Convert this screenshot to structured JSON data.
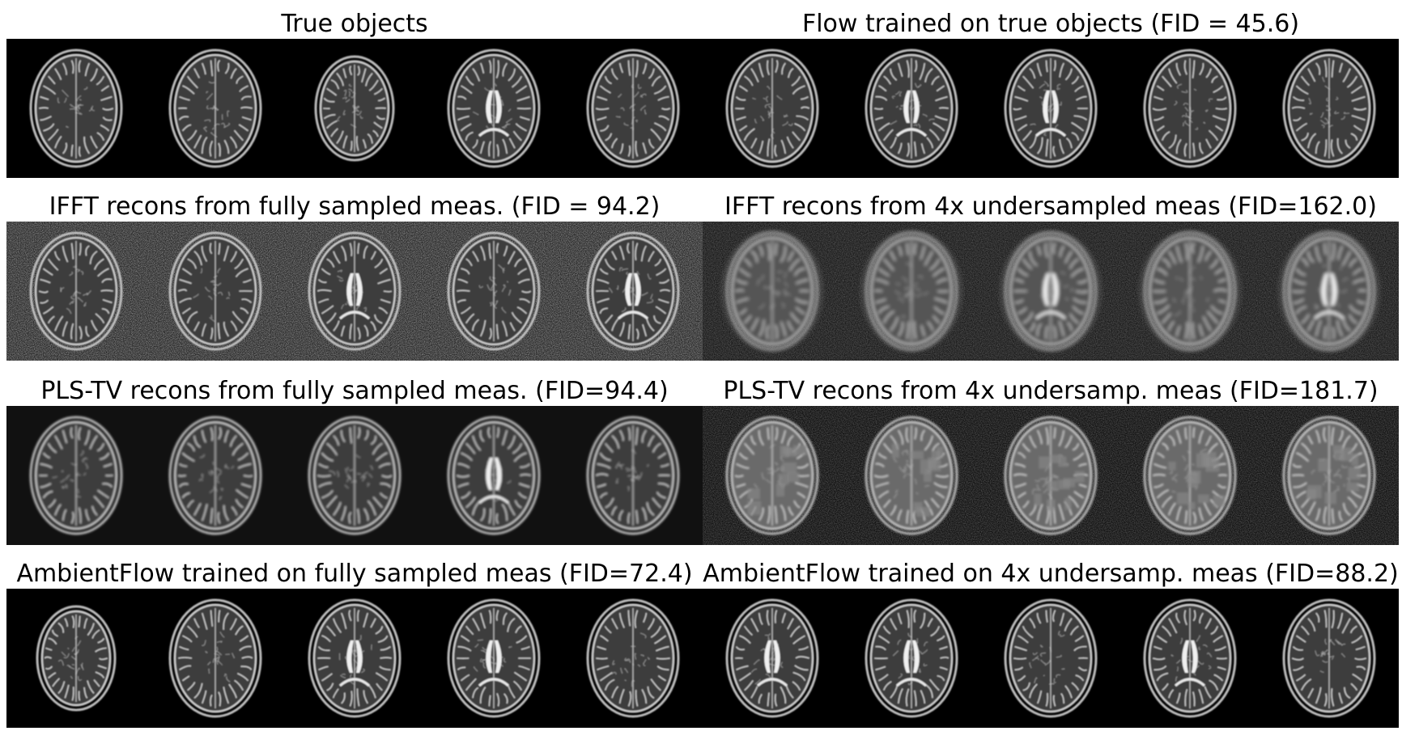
{
  "panels": [
    {
      "title": "True objects",
      "style": "clean",
      "slices": [
        "upper",
        "upper",
        "top",
        "ventricle",
        "upper"
      ]
    },
    {
      "title": "Flow trained on true objects (FID = 45.6)",
      "style": "clean",
      "slices": [
        "upper",
        "ventricle",
        "ventricle",
        "upper",
        "upper"
      ]
    },
    {
      "title": "IFFT recons from fully sampled meas. (FID = 94.2)",
      "style": "noisy",
      "slices": [
        "upper",
        "upper",
        "ventricle",
        "upper",
        "ventricle"
      ]
    },
    {
      "title": "IFFT recons from 4x undersampled meas (FID=162.0)",
      "style": "aliased",
      "slices": [
        "upper",
        "upper",
        "ventricle",
        "upper",
        "ventricle"
      ]
    },
    {
      "title": "PLS-TV recons from fully sampled meas. (FID=94.4)",
      "style": "smooth",
      "slices": [
        "upper",
        "upper",
        "upper",
        "ventricle",
        "upper"
      ]
    },
    {
      "title": "PLS-TV recons from 4x undersamp. meas (FID=181.7)",
      "style": "blocky",
      "slices": [
        "upper",
        "upper",
        "upper",
        "upper",
        "upper"
      ]
    },
    {
      "title": "AmbientFlow trained on fully sampled meas (FID=72.4)",
      "style": "clean",
      "slices": [
        "top",
        "upper",
        "ventricle",
        "ventricle",
        "upper"
      ]
    },
    {
      "title": "AmbientFlow trained on 4x undersamp. meas (FID=88.2)",
      "style": "clean",
      "slices": [
        "ventricle",
        "ventricle",
        "upper",
        "ventricle",
        "upper"
      ]
    }
  ]
}
